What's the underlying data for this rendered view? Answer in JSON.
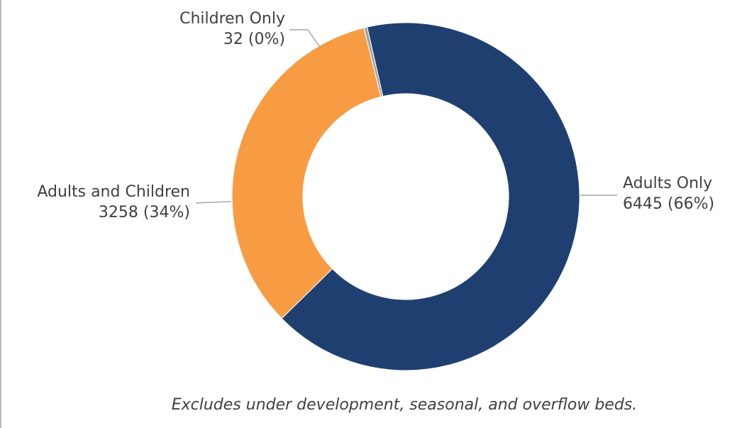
{
  "chart_data": {
    "type": "pie",
    "donut": true,
    "title": "",
    "slices": [
      {
        "name": "Adults Only",
        "value": 6445,
        "percent_label": "(66%)",
        "color": "#1f3f70"
      },
      {
        "name": "Adults and Children",
        "value": 3258,
        "percent_label": "(34%)",
        "color": "#f79c42"
      },
      {
        "name": "Children Only",
        "value": 32,
        "percent_label": "(0%)",
        "color": "#a5a5a5"
      }
    ],
    "legend": "none"
  },
  "footnote": "Excludes under development, seasonal, and overflow beds."
}
